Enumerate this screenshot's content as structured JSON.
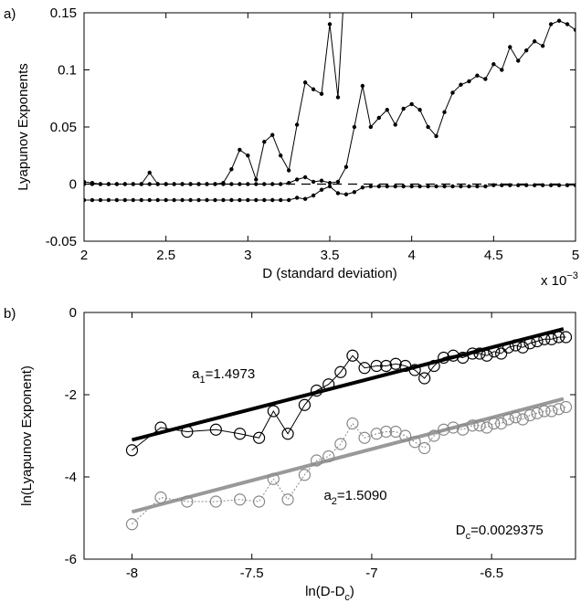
{
  "chart_data": [
    {
      "type": "line",
      "panel_label": "a)",
      "xlabel": "D (standard deviation)",
      "ylabel": "Lyapunov Exponents",
      "x_multiplier": [
        "x 10",
        "−3"
      ],
      "xlim": [
        2,
        5
      ],
      "ylim": [
        -0.05,
        0.15
      ],
      "xticks": [
        2,
        2.5,
        3,
        3.5,
        4,
        4.5,
        5
      ],
      "yticks": [
        -0.05,
        0,
        0.05,
        0.1,
        0.15
      ],
      "reference_line": 0,
      "reference_color": "#000000",
      "x": [
        2.0,
        2.05,
        2.1,
        2.15,
        2.2,
        2.25,
        2.3,
        2.35,
        2.4,
        2.45,
        2.5,
        2.55,
        2.6,
        2.65,
        2.7,
        2.75,
        2.8,
        2.85,
        2.9,
        2.95,
        3.0,
        3.05,
        3.1,
        3.15,
        3.2,
        3.25,
        3.3,
        3.35,
        3.4,
        3.45,
        3.5,
        3.55,
        3.6,
        3.65,
        3.7,
        3.75,
        3.8,
        3.85,
        3.9,
        3.95,
        4.0,
        4.05,
        4.1,
        4.15,
        4.2,
        4.25,
        4.3,
        4.35,
        4.4,
        4.45,
        4.5,
        4.55,
        4.6,
        4.65,
        4.7,
        4.75,
        4.8,
        4.85,
        4.9,
        4.95,
        5.0
      ],
      "series": [
        {
          "color": "#000000",
          "values": [
            0.002,
            0.001,
            0,
            0,
            0,
            0,
            0,
            0,
            0.01,
            0,
            0,
            0,
            0,
            0,
            0,
            0,
            0,
            0.001,
            0.013,
            0.03,
            0.025,
            0.004,
            0.037,
            0.043,
            0.025,
            0.012,
            0.052,
            0.089,
            0.083,
            0.079,
            0.14,
            0.076,
            0.2,
            null,
            null,
            null,
            null,
            null,
            null,
            null,
            null,
            null,
            null,
            null,
            null,
            null,
            null,
            null,
            null,
            null,
            null,
            null,
            null,
            null,
            null,
            null,
            null,
            null,
            null,
            null,
            null
          ]
        },
        {
          "color": "#000000",
          "values": [
            0,
            0,
            0,
            0,
            0,
            0,
            0,
            0,
            0,
            0,
            0,
            0,
            0,
            0,
            0,
            0,
            0,
            0,
            0,
            0,
            0,
            0,
            0,
            0,
            0,
            0.001,
            0.004,
            0.006,
            0.002,
            0.003,
            0.001,
            0.002,
            0.015,
            0.05,
            0.086,
            0.05,
            0.058,
            0.065,
            0.052,
            0.066,
            0.07,
            0.065,
            0.05,
            0.042,
            0.063,
            0.08,
            0.087,
            0.09,
            0.095,
            0.092,
            0.105,
            0.1,
            0.12,
            0.108,
            0.117,
            0.125,
            0.121,
            0.14,
            0.143,
            0.14,
            0.135
          ]
        },
        {
          "color": "#000000",
          "values": [
            -0.014,
            -0.014,
            -0.014,
            -0.014,
            -0.014,
            -0.014,
            -0.014,
            -0.014,
            -0.014,
            -0.014,
            -0.014,
            -0.014,
            -0.014,
            -0.014,
            -0.014,
            -0.014,
            -0.014,
            -0.014,
            -0.014,
            -0.014,
            -0.014,
            -0.014,
            -0.014,
            -0.014,
            -0.014,
            -0.014,
            -0.012,
            -0.013,
            -0.01,
            -0.005,
            -0.002,
            -0.008,
            -0.009,
            -0.007,
            -0.003,
            -0.002,
            -0.002,
            -0.002,
            -0.002,
            -0.002,
            -0.002,
            -0.002,
            -0.002,
            -0.002,
            -0.002,
            -0.002,
            -0.002,
            -0.002,
            -0.002,
            -0.002,
            -0.001,
            -0.001,
            -0.001,
            -0.001,
            -0.001,
            -0.001,
            -0.001,
            -0.001,
            -0.001,
            -0.001,
            -0.001
          ]
        }
      ]
    },
    {
      "type": "line",
      "panel_label": "b)",
      "xlabel_parts": [
        "ln(D-D",
        "c",
        ")"
      ],
      "ylabel": "ln(Lyapunov Exponent)",
      "xlim": [
        -8.2,
        -6.15
      ],
      "ylim": [
        -6,
        0
      ],
      "xticks": [
        -8,
        -7.5,
        -7,
        -6.5
      ],
      "yticks": [
        -6,
        -4,
        -2,
        0
      ],
      "markers": "circle",
      "x": [
        -8,
        -7.88,
        -7.77,
        -7.65,
        -7.55,
        -7.47,
        -7.41,
        -7.35,
        -7.28,
        -7.23,
        -7.18,
        -7.13,
        -7.08,
        -7.03,
        -6.98,
        -6.94,
        -6.9,
        -6.86,
        -6.82,
        -6.78,
        -6.74,
        -6.7,
        -6.66,
        -6.62,
        -6.58,
        -6.55,
        -6.52,
        -6.49,
        -6.46,
        -6.43,
        -6.4,
        -6.37,
        -6.34,
        -6.31,
        -6.28,
        -6.25,
        -6.22,
        -6.19
      ],
      "series": [
        {
          "color": "#000000",
          "values": [
            -3.35,
            -2.8,
            -2.9,
            -2.85,
            -2.95,
            -3.05,
            -2.4,
            -2.95,
            -2.25,
            -1.9,
            -1.75,
            -1.45,
            -1.05,
            -1.35,
            -1.3,
            -1.3,
            -1.25,
            -1.3,
            -1.4,
            -1.6,
            -1.3,
            -1.1,
            -1.05,
            -1.1,
            -1.0,
            -1.0,
            -1.05,
            -0.95,
            -1.0,
            -0.85,
            -0.8,
            -0.85,
            -0.75,
            -0.7,
            -0.65,
            -0.65,
            -0.6,
            -0.6
          ]
        },
        {
          "color": "#888888",
          "values": [
            -5.15,
            -4.5,
            -4.6,
            -4.6,
            -4.55,
            -4.6,
            -4.05,
            -4.55,
            -3.95,
            -3.6,
            -3.5,
            -3.2,
            -2.7,
            -3.05,
            -2.95,
            -2.9,
            -2.9,
            -3.0,
            -3.15,
            -3.3,
            -3.0,
            -2.85,
            -2.8,
            -2.85,
            -2.75,
            -2.75,
            -2.8,
            -2.7,
            -2.7,
            -2.6,
            -2.55,
            -2.6,
            -2.5,
            -2.45,
            -2.4,
            -2.4,
            -2.35,
            -2.3
          ]
        }
      ],
      "fit_lines": [
        {
          "color": "#000000",
          "x": [
            -8,
            -6.2
          ],
          "values": [
            -3.1,
            -0.4
          ]
        },
        {
          "color": "#999999",
          "x": [
            -8,
            -6.2
          ],
          "values": [
            -4.85,
            -2.1
          ]
        }
      ],
      "annotations": [
        {
          "x": -7.75,
          "y": -1.6,
          "parts": [
            "a",
            "1",
            "=1.4973"
          ]
        },
        {
          "x": -7.2,
          "y": -4.55,
          "parts": [
            "a",
            "2",
            "=1.5090"
          ]
        },
        {
          "x": -6.65,
          "y": -5.4,
          "parts": [
            "D",
            "c",
            "=0.0029375"
          ]
        }
      ]
    }
  ]
}
